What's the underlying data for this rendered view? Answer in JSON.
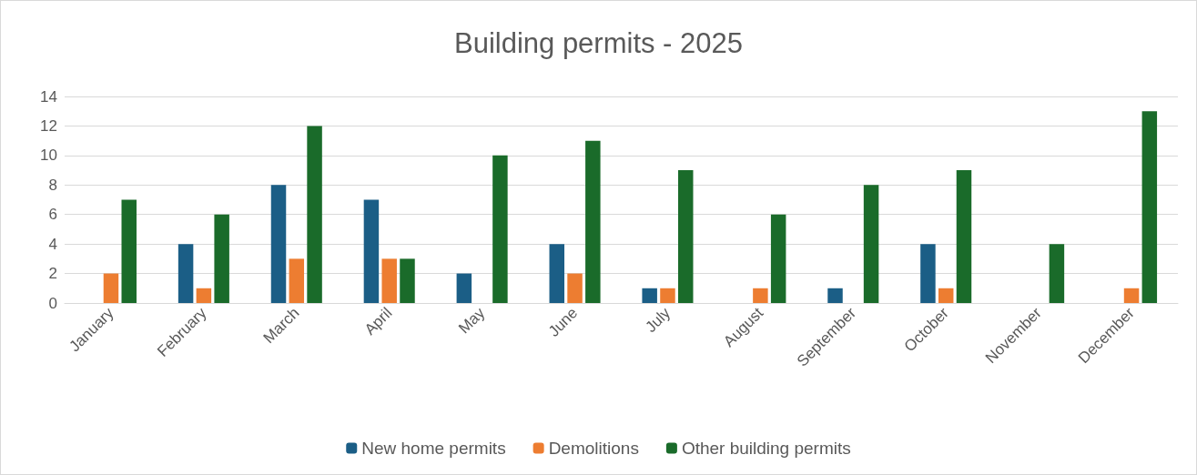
{
  "chart_data": {
    "type": "bar",
    "title": "Building permits - 2025",
    "categories": [
      "January",
      "February",
      "March",
      "April",
      "May",
      "June",
      "July",
      "August",
      "September",
      "October",
      "November",
      "December"
    ],
    "series": [
      {
        "name": "New home permits",
        "color": "#1b5e86",
        "values": [
          0,
          4,
          8,
          7,
          2,
          4,
          1,
          0,
          1,
          4,
          0,
          0
        ]
      },
      {
        "name": "Demolitions",
        "color": "#ed7d31",
        "values": [
          2,
          1,
          3,
          3,
          0,
          2,
          1,
          1,
          0,
          1,
          0,
          1
        ]
      },
      {
        "name": "Other building permits",
        "color": "#1a6b2a",
        "values": [
          7,
          6,
          12,
          3,
          10,
          11,
          9,
          6,
          8,
          9,
          4,
          13
        ]
      }
    ],
    "ylim": [
      0,
      14
    ],
    "yticks": [
      0,
      2,
      4,
      6,
      8,
      10,
      12,
      14
    ],
    "grid": "y",
    "legend": "bottom"
  }
}
